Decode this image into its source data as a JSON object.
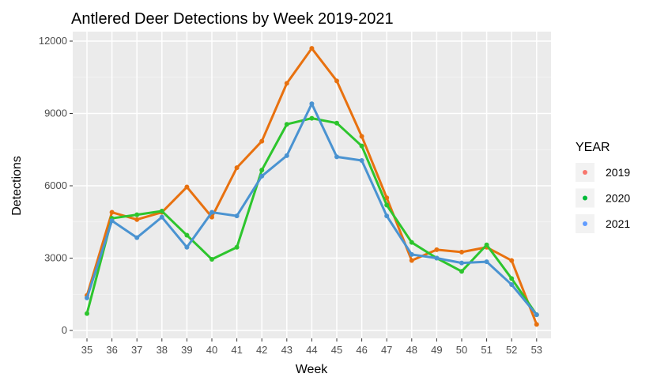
{
  "chart_data": {
    "type": "line",
    "title": "Antlered Deer Detections by Week 2019-2021",
    "xlabel": "Week",
    "ylabel": "Detections",
    "x": [
      35,
      36,
      37,
      38,
      39,
      40,
      41,
      42,
      43,
      44,
      45,
      46,
      47,
      48,
      49,
      50,
      51,
      52,
      53
    ],
    "ylim": [
      0,
      12000
    ],
    "yticks": [
      0,
      3000,
      6000,
      9000,
      12000
    ],
    "grid": true,
    "legend": {
      "title": "YEAR",
      "placement": "right"
    },
    "series": [
      {
        "name": "2019",
        "line_color": "#E8710F",
        "legend_color": "#F8766D",
        "values": [
          1450,
          4900,
          4600,
          4900,
          5950,
          4700,
          6750,
          7850,
          10250,
          11700,
          10350,
          8050,
          5500,
          2900,
          3350,
          3250,
          3450,
          2900,
          250
        ]
      },
      {
        "name": "2020",
        "line_color": "#2DC52D",
        "legend_color": "#00BA38",
        "values": [
          700,
          4650,
          4800,
          4950,
          3950,
          2950,
          3450,
          6650,
          8550,
          8800,
          8600,
          7650,
          5200,
          3650,
          3000,
          2450,
          3550,
          2150,
          650
        ]
      },
      {
        "name": "2021",
        "line_color": "#4A93D1",
        "legend_color": "#619CFF",
        "values": [
          1350,
          4550,
          3850,
          4700,
          3450,
          4900,
          4750,
          6400,
          7250,
          9400,
          7200,
          7050,
          4750,
          3150,
          3000,
          2800,
          2850,
          1900,
          650
        ]
      }
    ]
  }
}
